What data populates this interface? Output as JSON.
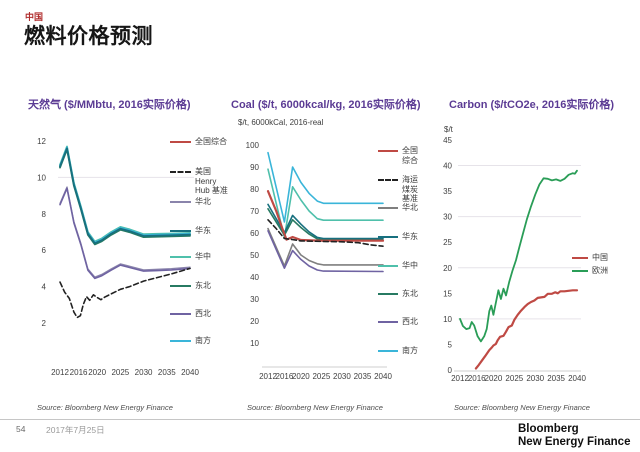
{
  "slide": {
    "kicker": "中国",
    "title": "燃料价格预测",
    "source_note": "Source: Bloomberg New Energy Finance",
    "page_number": "54",
    "date": "2017年7月25日",
    "logo": {
      "line1": "Bloomberg",
      "line2": "New Energy Finance"
    }
  },
  "chart_data": [
    {
      "type": "line",
      "title": "天然气 ($/MMbtu, 2016实际价格)",
      "subtitle": "",
      "x_range": [
        2012,
        2040
      ],
      "y_range": [
        2,
        12
      ],
      "x_ticks": [
        2012,
        2016,
        2020,
        2025,
        2030,
        2035,
        2040
      ],
      "y_ticks": [
        2,
        4,
        6,
        8,
        10,
        12
      ],
      "gridline_values": [
        10
      ],
      "legend_position": "right-overlay",
      "series": [
        {
          "name": "全国综合",
          "legend": "全国综合",
          "color": "#bf4a44",
          "dashed": false,
          "width": 1.5,
          "x": [
            2012,
            2013.5,
            2015,
            2016.5,
            2018,
            2019.5,
            2021,
            2023,
            2025,
            2027,
            2030,
            2033,
            2036,
            2040
          ],
          "y": [
            10.6,
            11.6,
            9.6,
            8.3,
            6.9,
            6.38,
            6.55,
            6.9,
            7.18,
            7.05,
            6.78,
            6.8,
            6.82,
            6.85
          ]
        },
        {
          "name": "美国 Henry Hub 基准",
          "legend": "美国\nHenry\nHub 基准",
          "color": "#222222",
          "dashed": true,
          "width": 1.6,
          "x": [
            2012,
            2013,
            2014,
            2015,
            2015.7,
            2016.4,
            2017,
            2017.7,
            2018.4,
            2019.2,
            2020,
            2020.8,
            2021.6,
            2023,
            2025,
            2027,
            2030,
            2033,
            2036,
            2040
          ],
          "y": [
            4.25,
            3.7,
            3.35,
            2.6,
            2.3,
            2.4,
            3.0,
            3.45,
            3.25,
            3.55,
            3.4,
            3.28,
            3.42,
            3.6,
            3.85,
            4.0,
            4.3,
            4.5,
            4.7,
            5.0
          ]
        },
        {
          "name": "华北",
          "legend": "华北",
          "color": "#8a84ab",
          "dashed": false,
          "width": 1.3,
          "x": [
            2012,
            2013.5,
            2015,
            2016.5,
            2018,
            2019.5,
            2021,
            2023,
            2025,
            2027,
            2030,
            2033,
            2036,
            2040
          ],
          "y": [
            8.57,
            9.47,
            7.57,
            6.37,
            4.97,
            4.52,
            4.67,
            4.97,
            5.25,
            5.12,
            4.92,
            4.95,
            4.99,
            5.07
          ]
        },
        {
          "name": "华东",
          "legend": "华东",
          "color": "#17707f",
          "dashed": false,
          "width": 1.8,
          "x": [
            2012,
            2013.5,
            2015,
            2016.5,
            2018,
            2019.5,
            2021,
            2023,
            2025,
            2027,
            2030,
            2033,
            2036,
            2040
          ],
          "y": [
            10.6,
            11.6,
            9.6,
            8.3,
            6.9,
            6.38,
            6.55,
            6.9,
            7.18,
            7.05,
            6.78,
            6.8,
            6.82,
            6.85
          ]
        },
        {
          "name": "华中",
          "legend": "华中",
          "color": "#4fc0ab",
          "dashed": false,
          "width": 1.8,
          "x": [
            2012,
            2013.5,
            2015,
            2016.5,
            2018,
            2019.5,
            2021,
            2023,
            2025,
            2027,
            2030,
            2033,
            2036,
            2040
          ],
          "y": [
            10.7,
            11.7,
            9.7,
            8.4,
            7.0,
            6.48,
            6.65,
            7.0,
            7.28,
            7.15,
            6.88,
            6.9,
            6.92,
            6.95
          ]
        },
        {
          "name": "东北",
          "legend": "东北",
          "color": "#277a62",
          "dashed": false,
          "width": 1.8,
          "x": [
            2012,
            2013.5,
            2015,
            2016.5,
            2018,
            2019.5,
            2021,
            2023,
            2025,
            2027,
            2030,
            2033,
            2036,
            2040
          ],
          "y": [
            10.54,
            11.54,
            9.54,
            8.24,
            6.84,
            6.32,
            6.49,
            6.84,
            7.12,
            6.99,
            6.72,
            6.74,
            6.76,
            6.79
          ]
        },
        {
          "name": "西北",
          "legend": "西北",
          "color": "#6f63a2",
          "dashed": false,
          "width": 1.6,
          "x": [
            2012,
            2013.5,
            2015,
            2016.5,
            2018,
            2019.5,
            2021,
            2023,
            2025,
            2027,
            2030,
            2033,
            2036,
            2040
          ],
          "y": [
            8.5,
            9.4,
            7.5,
            6.3,
            4.9,
            4.45,
            4.6,
            4.9,
            5.18,
            5.05,
            4.85,
            4.88,
            4.92,
            5.0
          ]
        },
        {
          "name": "南方",
          "legend": "南方",
          "color": "#3ab5d9",
          "dashed": false,
          "width": 1.8,
          "x": [
            2012,
            2013.5,
            2015,
            2016.5,
            2018,
            2019.5,
            2021,
            2023,
            2025,
            2027,
            2030,
            2033,
            2036,
            2040
          ],
          "y": [
            10.65,
            11.65,
            9.65,
            8.35,
            6.95,
            6.43,
            6.6,
            6.95,
            7.23,
            7.1,
            6.83,
            6.85,
            6.87,
            6.9
          ]
        }
      ]
    },
    {
      "type": "line",
      "title": "Coal ($/t, 6000kcal/kg, 2016实际价格)",
      "subtitle": "$/t, 6000kCal, 2016-real",
      "x_range": [
        2012,
        2040
      ],
      "y_range": [
        0,
        100
      ],
      "x_ticks": [
        2012,
        2016,
        2020,
        2025,
        2030,
        2035,
        2040
      ],
      "y_ticks": [
        10,
        20,
        30,
        40,
        50,
        60,
        70,
        80,
        90,
        100
      ],
      "gridline_values": [],
      "legend_position": "right-overlay",
      "series": [
        {
          "name": "全国综合",
          "legend": "全国\n综合",
          "color": "#bf4a44",
          "dashed": false,
          "width": 2.2,
          "x": [
            2012,
            2014,
            2015.5,
            2016.5,
            2018,
            2020,
            2025,
            2030,
            2040
          ],
          "y": [
            79,
            70,
            62,
            57,
            58.2,
            56.8,
            56.5,
            56.5,
            56.5
          ]
        },
        {
          "name": "海运煤炭基准",
          "legend": "海运\n煤炭\n基准",
          "color": "#222222",
          "dashed": true,
          "width": 1.6,
          "x": [
            2012,
            2014,
            2016,
            2018,
            2020,
            2025,
            2030,
            2034,
            2037,
            2040
          ],
          "y": [
            66,
            62,
            57.5,
            57,
            56.4,
            56.2,
            56,
            55.6,
            54.6,
            54
          ]
        },
        {
          "name": "华北",
          "legend": "华北",
          "color": "#7f7f7f",
          "dashed": false,
          "width": 1.6,
          "x": [
            2012,
            2016,
            2018,
            2020,
            2022,
            2024,
            2025.5,
            2040
          ],
          "y": [
            62,
            45,
            55,
            50,
            47.5,
            46,
            45.5,
            45.5
          ]
        },
        {
          "name": "华东",
          "legend": "华东",
          "color": "#17707f",
          "dashed": false,
          "width": 1.6,
          "x": [
            2012,
            2016,
            2018,
            2020,
            2022,
            2024,
            2025.5,
            2040
          ],
          "y": [
            73,
            60,
            68,
            64,
            60.5,
            58,
            57.5,
            57.5
          ]
        },
        {
          "name": "华中",
          "legend": "华中",
          "color": "#4fc0ab",
          "dashed": false,
          "width": 1.6,
          "x": [
            2012,
            2016,
            2018,
            2020,
            2022,
            2024,
            2025.5,
            2040
          ],
          "y": [
            89,
            58,
            81,
            75,
            70,
            66.5,
            65.8,
            65.8
          ]
        },
        {
          "name": "东北",
          "legend": "东北",
          "color": "#277a62",
          "dashed": false,
          "width": 1.6,
          "x": [
            2012,
            2016,
            2018,
            2020,
            2022,
            2024,
            2025.5,
            2040
          ],
          "y": [
            71,
            59,
            66,
            62.5,
            59.5,
            57.3,
            56.9,
            56.9
          ]
        },
        {
          "name": "西北",
          "legend": "西北",
          "color": "#6f63a2",
          "dashed": false,
          "width": 1.6,
          "x": [
            2012,
            2016,
            2018,
            2020,
            2022,
            2024,
            2025.5,
            2040
          ],
          "y": [
            61,
            44,
            52,
            48,
            45,
            43.2,
            42.7,
            42.5
          ]
        },
        {
          "name": "南方",
          "legend": "南方",
          "color": "#3ab5d9",
          "dashed": false,
          "width": 1.6,
          "x": [
            2012,
            2016,
            2018,
            2020,
            2022,
            2024,
            2025.5,
            2040
          ],
          "y": [
            96.5,
            65,
            90,
            83,
            78,
            74.5,
            73.5,
            73.5
          ]
        }
      ]
    },
    {
      "type": "line",
      "title": "Carbon ($/tCO2e, 2016实际价格)",
      "subtitle": "$/t",
      "x_range": [
        2012,
        2040
      ],
      "y_range": [
        0,
        45
      ],
      "x_ticks": [
        2012,
        2016,
        2020,
        2025,
        2030,
        2035,
        2040
      ],
      "y_ticks": [
        0,
        5,
        10,
        15,
        20,
        25,
        30,
        35,
        40,
        45
      ],
      "gridline_values": [
        10,
        20,
        30,
        40
      ],
      "legend_position": "right-inside",
      "series": [
        {
          "name": "中国",
          "legend": "中国",
          "color": "#bf4a44",
          "dashed": false,
          "width": 2.2,
          "x": [
            2015.8,
            2016.5,
            2017.3,
            2018,
            2019,
            2019.6,
            2020,
            2020.6,
            2021,
            2021.6,
            2022.4,
            2023,
            2023.6,
            2024.4,
            2025,
            2025.8,
            2026.6,
            2027.4,
            2028.2,
            2029,
            2029.8,
            2030.6,
            2031.4,
            2032.2,
            2033,
            2034,
            2034.8,
            2035.4,
            2036,
            2037,
            2038,
            2039,
            2040
          ],
          "y": [
            0.3,
            1.0,
            1.9,
            2.7,
            3.9,
            4.4,
            4.8,
            5.1,
            5.8,
            6.5,
            6.7,
            7.5,
            8.4,
            8.7,
            9.8,
            10.8,
            11.6,
            12.3,
            12.9,
            13.3,
            13.6,
            14.1,
            14.2,
            14.3,
            14.9,
            14.9,
            15.2,
            15.0,
            15.4,
            15.4,
            15.5,
            15.6,
            15.6
          ]
        },
        {
          "name": "欧洲",
          "legend": "欧洲",
          "color": "#2a9d57",
          "dashed": false,
          "width": 1.8,
          "x": [
            2012,
            2012.7,
            2013.5,
            2014.3,
            2014.8,
            2015.4,
            2016.2,
            2017,
            2017.8,
            2018.4,
            2019,
            2019.5,
            2020,
            2020.6,
            2021.2,
            2021.8,
            2022.4,
            2023,
            2023.8,
            2024.6,
            2025.4,
            2026.2,
            2027,
            2028,
            2029,
            2030,
            2031,
            2032,
            2033,
            2034,
            2035,
            2036,
            2037,
            2038,
            2039,
            2039.5,
            2040
          ],
          "y": [
            10,
            8.6,
            8.0,
            8.2,
            9.4,
            8.7,
            6.6,
            5.6,
            6.6,
            8.0,
            11.5,
            12.6,
            10.8,
            13.2,
            15.6,
            13.9,
            15.9,
            14.6,
            17.3,
            19.5,
            21.5,
            24.0,
            26.5,
            29.5,
            32.0,
            34.3,
            36.3,
            37.5,
            37.4,
            37.1,
            37.3,
            37.0,
            37.4,
            38.2,
            38.5,
            38.4,
            39.0
          ]
        }
      ]
    }
  ]
}
